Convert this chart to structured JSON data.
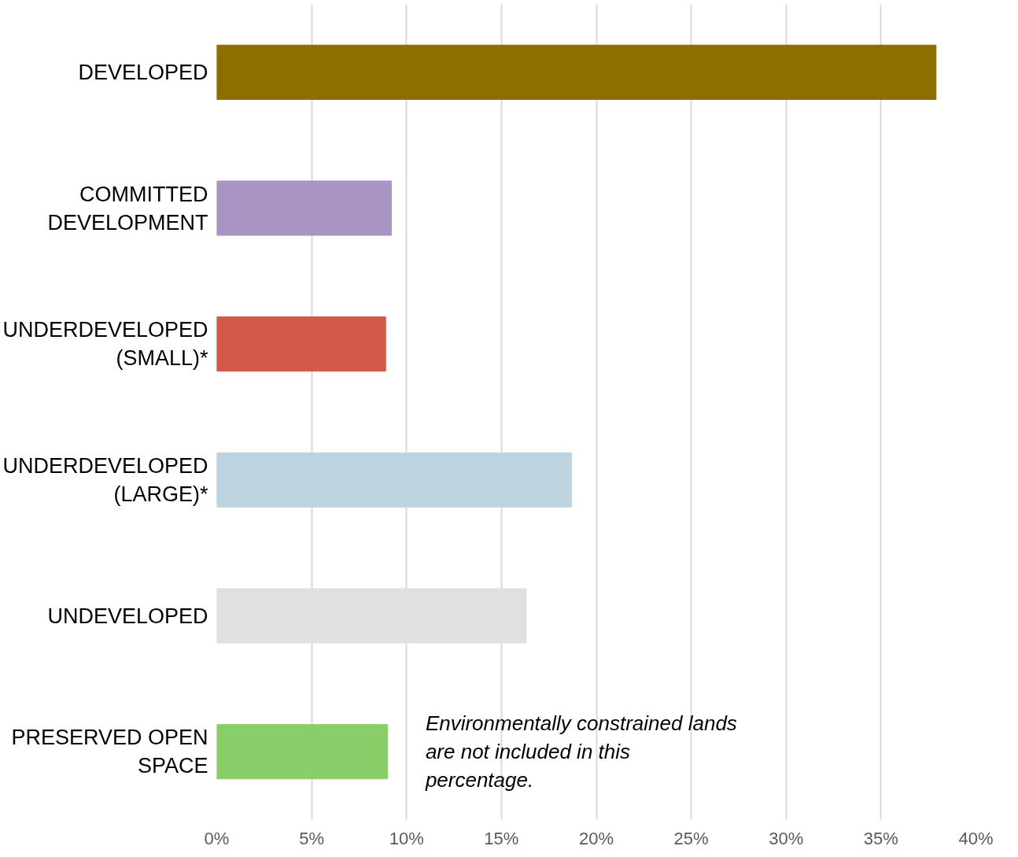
{
  "chart_data": {
    "type": "bar",
    "orientation": "horizontal",
    "categories": [
      "DEVELOPED",
      "COMMITTED DEVELOPMENT",
      "UNDERDEVELOPED (SMALL)*",
      "UNDERDEVELOPED (LARGE)*",
      "UNDEVELOPED",
      "PRESERVED OPEN SPACE"
    ],
    "values": [
      37.9,
      9.2,
      8.9,
      18.7,
      16.3,
      9.0
    ],
    "colors": [
      "#8b7000",
      "#a995c3",
      "#d35a4a",
      "#bdd4e0",
      "#e0e0e0",
      "#88cf6a"
    ],
    "xlim": [
      0,
      40
    ],
    "xticks": [
      {
        "value": 0,
        "label": "0%"
      },
      {
        "value": 5,
        "label": "5%"
      },
      {
        "value": 10,
        "label": "10%"
      },
      {
        "value": 15,
        "label": "15%"
      },
      {
        "value": 20,
        "label": "20%"
      },
      {
        "value": 25,
        "label": "25%"
      },
      {
        "value": 30,
        "label": "30%"
      },
      {
        "value": 35,
        "label": "35%"
      },
      {
        "value": 40,
        "label": "40%"
      }
    ],
    "grid": "x",
    "annotations": [
      "Environmentally constrained lands are not included in this percentage."
    ]
  }
}
